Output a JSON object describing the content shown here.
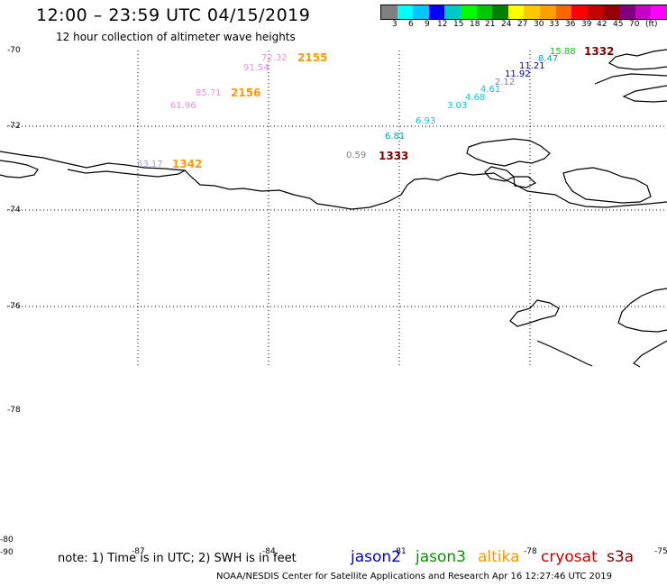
{
  "header": {
    "title": "12:00 – 23:59 UTC 04/15/2019",
    "subtitle": "12 hour collection of altimeter wave heights"
  },
  "colorbar": {
    "colors": [
      "#808080",
      "#00ffff",
      "#00c8ff",
      "#0000ff",
      "#00c8c8",
      "#00ff00",
      "#00c800",
      "#008000",
      "#ffff00",
      "#ffc800",
      "#ffa000",
      "#ff6400",
      "#ff0000",
      "#c80000",
      "#960000",
      "#800080",
      "#c800c8",
      "#ff00ff",
      "#000000"
    ],
    "labels": [
      "3",
      "6",
      "9",
      "12",
      "15",
      "18",
      "21",
      "24",
      "27",
      "30",
      "33",
      "36",
      "39",
      "42",
      "45",
      "70",
      "(ft)"
    ]
  },
  "map": {
    "lat_labels": [
      "-70",
      "-72",
      "-74",
      "-76",
      "-78",
      "-80",
      "-90"
    ],
    "lon_labels": [
      "-87",
      "-84",
      "-81",
      "-78",
      "-75"
    ]
  },
  "observations": [
    {
      "text": "72.32",
      "color": "#e890e8"
    },
    {
      "text": "91.54",
      "color": "#e890e8"
    },
    {
      "text": "85.71",
      "color": "#e890e8"
    },
    {
      "text": "61.96",
      "color": "#e890e8"
    },
    {
      "text": "63.17",
      "color": "#a0a0e0"
    },
    {
      "text": "0.59",
      "color": "#808080"
    },
    {
      "text": "6.81",
      "color": "#00a0c8"
    },
    {
      "text": "6.93",
      "color": "#00c8e6"
    },
    {
      "text": "3.03",
      "color": "#00c8e6"
    },
    {
      "text": "4.68",
      "color": "#00c8e6"
    },
    {
      "text": "4.61",
      "color": "#00c8e6"
    },
    {
      "text": "2.12",
      "color": "#808080"
    },
    {
      "text": "11.92",
      "color": "#0000c8"
    },
    {
      "text": "11.21",
      "color": "#0000c8"
    },
    {
      "text": "8.47",
      "color": "#00a0c8"
    },
    {
      "text": "15.88",
      "color": "#00c800"
    }
  ],
  "passes": [
    {
      "text": "2155",
      "color": "#ff9900"
    },
    {
      "text": "2156",
      "color": "#ff9900"
    },
    {
      "text": "1342",
      "color": "#ff9900"
    },
    {
      "text": "1333",
      "color": "#800000"
    },
    {
      "text": "1332",
      "color": "#800000"
    }
  ],
  "note": "note: 1) Time is in UTC; 2) SWH is in feet",
  "satellites": [
    {
      "name": "jason2",
      "color": "#0000c8"
    },
    {
      "name": "jason3",
      "color": "#009600"
    },
    {
      "name": "altika",
      "color": "#ff9600"
    },
    {
      "name": "cryosat",
      "color": "#c80000"
    },
    {
      "name": "s3a",
      "color": "#800000"
    }
  ],
  "footer": "NOAA/NESDIS Center for Satellite Applications and Research   Apr 16 12:27:46 UTC 2019"
}
